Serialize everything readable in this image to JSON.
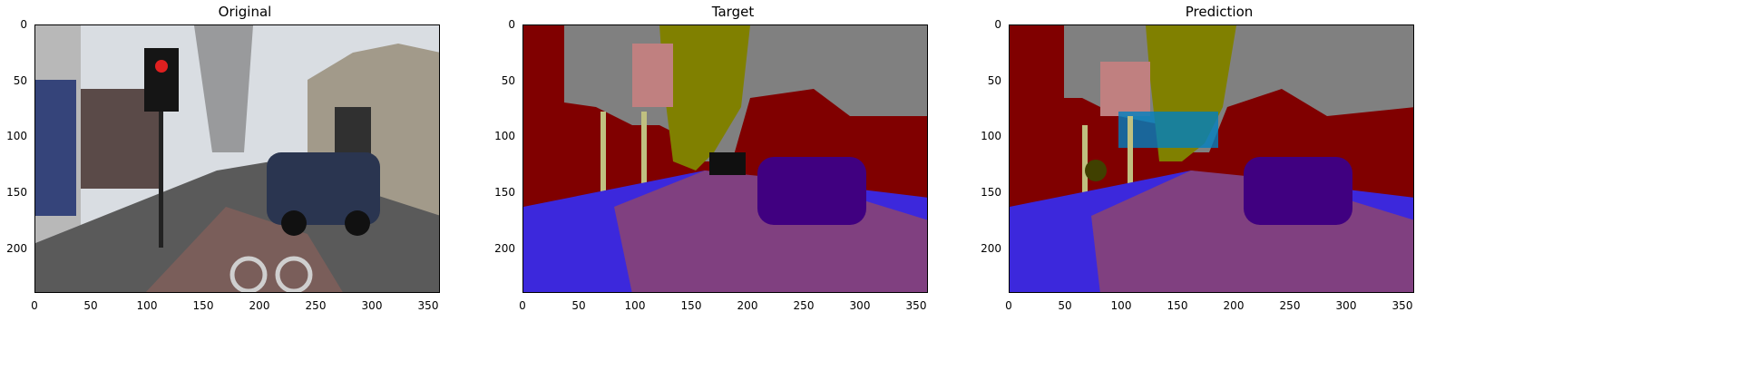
{
  "panels": [
    {
      "id": "original",
      "title": "Original"
    },
    {
      "id": "target",
      "title": "Target"
    },
    {
      "id": "prediction",
      "title": "Prediction"
    }
  ],
  "axes": {
    "xlim": [
      0,
      360
    ],
    "ylim": [
      0,
      240
    ],
    "x_ticks": [
      0,
      50,
      100,
      150,
      200,
      250,
      300,
      350
    ],
    "y_ticks": [
      0,
      50,
      100,
      150,
      200
    ]
  },
  "colors": {
    "sky": "#808080",
    "building": "#800000",
    "tree": "#808000",
    "sign": "#c08080",
    "pole": "#c0c080",
    "sidewalk": "#3c28dc",
    "road": "#804080",
    "car": "#400080",
    "dark": "#101010",
    "fence": "#0080c0",
    "misc": "#404000"
  }
}
